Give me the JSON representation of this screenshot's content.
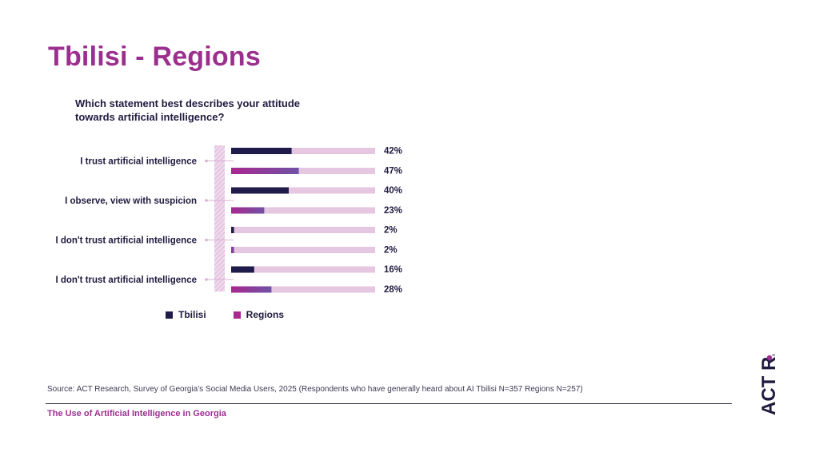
{
  "page": {
    "title": "Tbilisi - Regions",
    "question": "Which statement best describes your attitude towards artificial intelligence?",
    "source": "Source: ACT Research, Survey of Georgia's Social Media Users, 2025 (Respondents who have generally heard about AI Tbilisi N=357 Regions N=257)",
    "footer": "The Use of Artificial Intelligence in Georgia",
    "logo_text": "ACT R."
  },
  "legend": {
    "tbilisi": "Tbilisi",
    "regions": "Regions"
  },
  "colors": {
    "tbilisi": "#1f1b4a",
    "regions_start": "#a8288f",
    "regions_end": "#6f52a6",
    "track": "#e6c7e2",
    "accent": "#9b2f8e"
  },
  "chart_data": {
    "type": "bar",
    "orientation": "horizontal",
    "xlim": [
      0,
      100
    ],
    "categories": [
      "I trust artificial intelligence",
      "I observe, view with suspicion",
      "I don't trust artificial intelligence",
      "I don't trust artificial intelligence"
    ],
    "series": [
      {
        "name": "Tbilisi",
        "values": [
          42,
          40,
          2,
          16
        ],
        "labels": [
          "42%",
          "40%",
          "2%",
          "16%"
        ]
      },
      {
        "name": "Regions",
        "values": [
          47,
          23,
          2,
          28
        ],
        "labels": [
          "47%",
          "23%",
          "2%",
          "28%"
        ]
      }
    ],
    "legend_position": "bottom"
  }
}
